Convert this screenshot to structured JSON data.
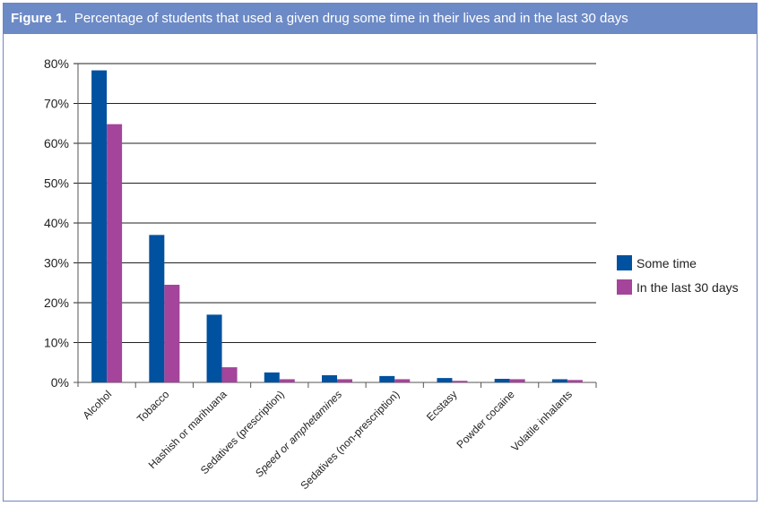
{
  "figure_label": "Figure 1.",
  "title": "Percentage of students that used a given drug some time in their lives and in the last 30 days",
  "chart_data": {
    "type": "bar",
    "categories": [
      "Alcohol",
      "Tobacco",
      "Hashish or marihuana",
      "Sedatives (prescription)",
      "Speed or amphetamines",
      "Sedatives (non-prescription)",
      "Ecstasy",
      "Powder cocaine",
      "Volatile inhalants"
    ],
    "italic_categories": [
      "Speed or amphetamines"
    ],
    "series": [
      {
        "name": "Some time",
        "color": "#0051a0",
        "values": [
          78.3,
          37,
          17,
          2.5,
          1.8,
          1.6,
          1.1,
          0.9,
          0.8
        ]
      },
      {
        "name": "In the last 30 days",
        "color": "#a4449a",
        "values": [
          64.8,
          24.5,
          3.8,
          0.8,
          0.8,
          0.8,
          0.4,
          0.8,
          0.6
        ]
      }
    ],
    "ylim": [
      0,
      80
    ],
    "yticks": [
      "0%",
      "10%",
      "20%",
      "30%",
      "40%",
      "50%",
      "60%",
      "70%",
      "80%"
    ],
    "grid": true,
    "legend": "right"
  }
}
